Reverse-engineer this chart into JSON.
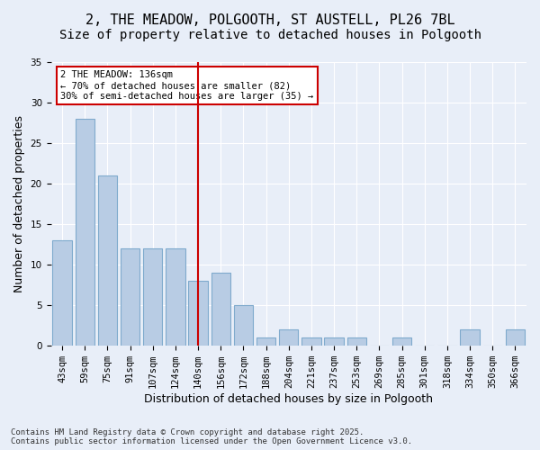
{
  "title": "2, THE MEADOW, POLGOOTH, ST AUSTELL, PL26 7BL",
  "subtitle": "Size of property relative to detached houses in Polgooth",
  "xlabel": "Distribution of detached houses by size in Polgooth",
  "ylabel": "Number of detached properties",
  "categories": [
    "43sqm",
    "59sqm",
    "75sqm",
    "91sqm",
    "107sqm",
    "124sqm",
    "140sqm",
    "156sqm",
    "172sqm",
    "188sqm",
    "204sqm",
    "221sqm",
    "237sqm",
    "253sqm",
    "269sqm",
    "285sqm",
    "301sqm",
    "318sqm",
    "334sqm",
    "350sqm",
    "366sqm"
  ],
  "values": [
    13,
    28,
    21,
    12,
    12,
    12,
    8,
    9,
    5,
    1,
    2,
    1,
    1,
    1,
    0,
    1,
    0,
    0,
    2,
    0,
    2
  ],
  "bar_color": "#b8cce4",
  "bar_edge_color": "#7faacd",
  "vline_x": 6,
  "vline_color": "#cc0000",
  "annotation_text": "2 THE MEADOW: 136sqm\n← 70% of detached houses are smaller (82)\n30% of semi-detached houses are larger (35) →",
  "annotation_box_color": "#ffffff",
  "annotation_box_edge": "#cc0000",
  "bg_color": "#e8eef8",
  "plot_bg_color": "#e8eef8",
  "grid_color": "#ffffff",
  "ylim": [
    0,
    35
  ],
  "yticks": [
    0,
    5,
    10,
    15,
    20,
    25,
    30,
    35
  ],
  "footer": "Contains HM Land Registry data © Crown copyright and database right 2025.\nContains public sector information licensed under the Open Government Licence v3.0.",
  "title_fontsize": 11,
  "subtitle_fontsize": 10,
  "tick_fontsize": 7.5,
  "label_fontsize": 9
}
